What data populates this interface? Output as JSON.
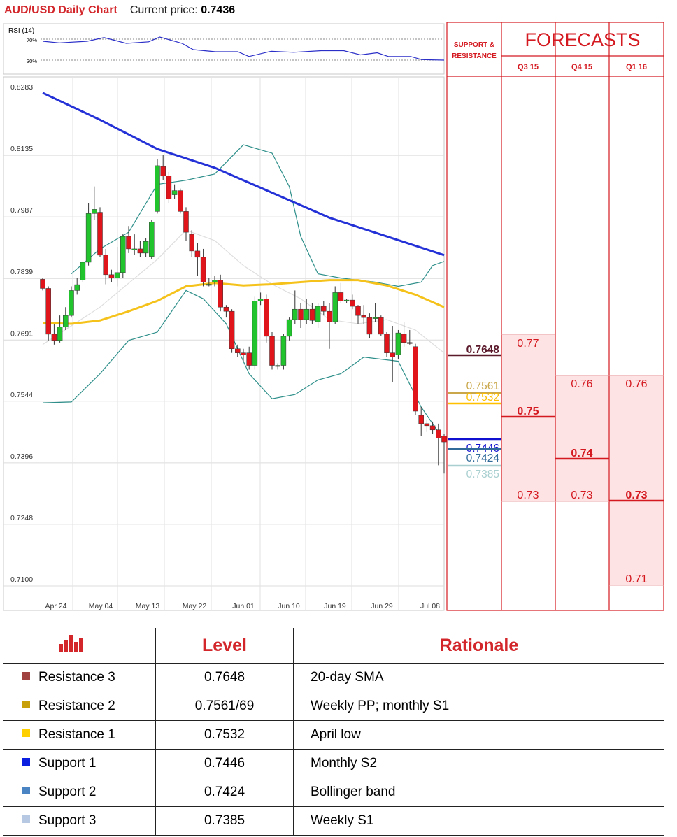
{
  "header": {
    "title": "AUD/USD Daily Chart",
    "price_label": "Current price:",
    "price_value": "0.7436"
  },
  "rsi": {
    "label": "RSI (14)",
    "level_high": "70%",
    "level_low": "30%"
  },
  "chart_data": {
    "type": "candlestick",
    "title": "AUD/USD Daily Chart",
    "ylim": [
      0.71,
      0.8283
    ],
    "y_ticks": [
      "0.8283",
      "0.8135",
      "0.7987",
      "0.7839",
      "0.7691",
      "0.7544",
      "0.7396",
      "0.7248",
      "0.7100"
    ],
    "x_tick_labels": [
      "Apr 24",
      "May 04",
      "May 13",
      "May 22",
      "Jun 01",
      "Jun 10",
      "Jun 19",
      "Jun 29",
      "Jul 08"
    ],
    "grid": true,
    "candles": [
      {
        "o": 0.7827,
        "h": 0.783,
        "l": 0.78,
        "c": 0.7805
      },
      {
        "o": 0.7805,
        "h": 0.781,
        "l": 0.768,
        "c": 0.7695
      },
      {
        "o": 0.7695,
        "h": 0.772,
        "l": 0.767,
        "c": 0.768
      },
      {
        "o": 0.768,
        "h": 0.774,
        "l": 0.7675,
        "c": 0.7712
      },
      {
        "o": 0.7712,
        "h": 0.776,
        "l": 0.7705,
        "c": 0.774
      },
      {
        "o": 0.774,
        "h": 0.781,
        "l": 0.7735,
        "c": 0.78
      },
      {
        "o": 0.78,
        "h": 0.783,
        "l": 0.779,
        "c": 0.7814
      },
      {
        "o": 0.7825,
        "h": 0.787,
        "l": 0.782,
        "c": 0.7868
      },
      {
        "o": 0.7868,
        "h": 0.801,
        "l": 0.786,
        "c": 0.7985
      },
      {
        "o": 0.7985,
        "h": 0.805,
        "l": 0.797,
        "c": 0.7995
      },
      {
        "o": 0.7988,
        "h": 0.8,
        "l": 0.788,
        "c": 0.7885
      },
      {
        "o": 0.7885,
        "h": 0.79,
        "l": 0.7815,
        "c": 0.7838
      },
      {
        "o": 0.7838,
        "h": 0.785,
        "l": 0.782,
        "c": 0.783
      },
      {
        "o": 0.783,
        "h": 0.7905,
        "l": 0.781,
        "c": 0.7843
      },
      {
        "o": 0.7843,
        "h": 0.7935,
        "l": 0.783,
        "c": 0.793
      },
      {
        "o": 0.793,
        "h": 0.7955,
        "l": 0.789,
        "c": 0.79
      },
      {
        "o": 0.79,
        "h": 0.7935,
        "l": 0.7885,
        "c": 0.79
      },
      {
        "o": 0.79,
        "h": 0.792,
        "l": 0.788,
        "c": 0.789
      },
      {
        "o": 0.789,
        "h": 0.7925,
        "l": 0.788,
        "c": 0.7918
      },
      {
        "o": 0.7882,
        "h": 0.797,
        "l": 0.7875,
        "c": 0.7965
      },
      {
        "o": 0.799,
        "h": 0.8115,
        "l": 0.7985,
        "c": 0.81
      },
      {
        "o": 0.8098,
        "h": 0.8125,
        "l": 0.8065,
        "c": 0.8075
      },
      {
        "o": 0.8075,
        "h": 0.8085,
        "l": 0.801,
        "c": 0.802
      },
      {
        "o": 0.803,
        "h": 0.8055,
        "l": 0.802,
        "c": 0.804
      },
      {
        "o": 0.804,
        "h": 0.8045,
        "l": 0.7985,
        "c": 0.799
      },
      {
        "o": 0.799,
        "h": 0.8,
        "l": 0.792,
        "c": 0.794
      },
      {
        "o": 0.7935,
        "h": 0.7945,
        "l": 0.788,
        "c": 0.7895
      },
      {
        "o": 0.7895,
        "h": 0.7915,
        "l": 0.7835,
        "c": 0.788
      },
      {
        "o": 0.788,
        "h": 0.79,
        "l": 0.781,
        "c": 0.782
      },
      {
        "o": 0.7815,
        "h": 0.783,
        "l": 0.781,
        "c": 0.7815
      },
      {
        "o": 0.782,
        "h": 0.7835,
        "l": 0.781,
        "c": 0.7825
      },
      {
        "o": 0.7825,
        "h": 0.7838,
        "l": 0.775,
        "c": 0.776
      },
      {
        "o": 0.776,
        "h": 0.7765,
        "l": 0.7735,
        "c": 0.775
      },
      {
        "o": 0.775,
        "h": 0.7755,
        "l": 0.765,
        "c": 0.766
      },
      {
        "o": 0.766,
        "h": 0.767,
        "l": 0.764,
        "c": 0.765
      },
      {
        "o": 0.765,
        "h": 0.766,
        "l": 0.763,
        "c": 0.7645
      },
      {
        "o": 0.765,
        "h": 0.7665,
        "l": 0.761,
        "c": 0.762
      },
      {
        "o": 0.762,
        "h": 0.7785,
        "l": 0.761,
        "c": 0.7775
      },
      {
        "o": 0.7775,
        "h": 0.7795,
        "l": 0.7765,
        "c": 0.778
      },
      {
        "o": 0.778,
        "h": 0.779,
        "l": 0.7675,
        "c": 0.769
      },
      {
        "o": 0.769,
        "h": 0.77,
        "l": 0.761,
        "c": 0.762
      },
      {
        "o": 0.762,
        "h": 0.7625,
        "l": 0.761,
        "c": 0.762
      },
      {
        "o": 0.762,
        "h": 0.7695,
        "l": 0.761,
        "c": 0.769
      },
      {
        "o": 0.769,
        "h": 0.7735,
        "l": 0.768,
        "c": 0.773
      },
      {
        "o": 0.773,
        "h": 0.78,
        "l": 0.772,
        "c": 0.7755
      },
      {
        "o": 0.7755,
        "h": 0.777,
        "l": 0.771,
        "c": 0.773
      },
      {
        "o": 0.773,
        "h": 0.778,
        "l": 0.772,
        "c": 0.7755
      },
      {
        "o": 0.7755,
        "h": 0.777,
        "l": 0.772,
        "c": 0.7728
      },
      {
        "o": 0.7725,
        "h": 0.777,
        "l": 0.771,
        "c": 0.7762
      },
      {
        "o": 0.7762,
        "h": 0.7775,
        "l": 0.774,
        "c": 0.775
      },
      {
        "o": 0.775,
        "h": 0.777,
        "l": 0.766,
        "c": 0.7725
      },
      {
        "o": 0.7725,
        "h": 0.781,
        "l": 0.772,
        "c": 0.7795
      },
      {
        "o": 0.7795,
        "h": 0.7818,
        "l": 0.777,
        "c": 0.7775
      },
      {
        "o": 0.7775,
        "h": 0.778,
        "l": 0.777,
        "c": 0.7777
      },
      {
        "o": 0.7777,
        "h": 0.779,
        "l": 0.7755,
        "c": 0.7762
      },
      {
        "o": 0.7762,
        "h": 0.7765,
        "l": 0.772,
        "c": 0.774
      },
      {
        "o": 0.774,
        "h": 0.7765,
        "l": 0.772,
        "c": 0.7735
      },
      {
        "o": 0.7735,
        "h": 0.7745,
        "l": 0.7685,
        "c": 0.7695
      },
      {
        "o": 0.7735,
        "h": 0.777,
        "l": 0.7725,
        "c": 0.7735
      },
      {
        "o": 0.7735,
        "h": 0.774,
        "l": 0.769,
        "c": 0.7695
      },
      {
        "o": 0.7695,
        "h": 0.77,
        "l": 0.764,
        "c": 0.765
      },
      {
        "o": 0.765,
        "h": 0.7715,
        "l": 0.758,
        "c": 0.764
      },
      {
        "o": 0.7645,
        "h": 0.7705,
        "l": 0.7635,
        "c": 0.7698
      },
      {
        "o": 0.7695,
        "h": 0.7725,
        "l": 0.7665,
        "c": 0.7675
      },
      {
        "o": 0.7675,
        "h": 0.7705,
        "l": 0.767,
        "c": 0.7673
      },
      {
        "o": 0.7665,
        "h": 0.7672,
        "l": 0.75,
        "c": 0.751
      },
      {
        "o": 0.75,
        "h": 0.752,
        "l": 0.745,
        "c": 0.748
      },
      {
        "o": 0.748,
        "h": 0.749,
        "l": 0.746,
        "c": 0.7475
      },
      {
        "o": 0.7475,
        "h": 0.7485,
        "l": 0.7455,
        "c": 0.7465
      },
      {
        "o": 0.7465,
        "h": 0.748,
        "l": 0.738,
        "c": 0.7445
      },
      {
        "o": 0.745,
        "h": 0.7455,
        "l": 0.736,
        "c": 0.7436
      }
    ],
    "sma200": [
      [
        0,
        0.8275
      ],
      [
        10,
        0.821
      ],
      [
        20,
        0.814
      ],
      [
        30,
        0.8095
      ],
      [
        40,
        0.8035
      ],
      [
        50,
        0.7975
      ],
      [
        60,
        0.793
      ],
      [
        70,
        0.7885
      ]
    ],
    "sma50": [
      [
        0,
        0.7722
      ],
      [
        5,
        0.772
      ],
      [
        10,
        0.7728
      ],
      [
        15,
        0.775
      ],
      [
        20,
        0.7775
      ],
      [
        25,
        0.781
      ],
      [
        30,
        0.7818
      ],
      [
        35,
        0.7812
      ],
      [
        40,
        0.7815
      ],
      [
        45,
        0.782
      ],
      [
        50,
        0.7825
      ],
      [
        55,
        0.7825
      ],
      [
        60,
        0.7812
      ],
      [
        65,
        0.779
      ],
      [
        70,
        0.776
      ]
    ],
    "bb_upper": [
      [
        5,
        0.784
      ],
      [
        10,
        0.79
      ],
      [
        15,
        0.794
      ],
      [
        20,
        0.8055
      ],
      [
        25,
        0.8065
      ],
      [
        30,
        0.808
      ],
      [
        35,
        0.815
      ],
      [
        40,
        0.813
      ],
      [
        43,
        0.805
      ],
      [
        45,
        0.793
      ],
      [
        48,
        0.784
      ],
      [
        52,
        0.783
      ],
      [
        58,
        0.782
      ],
      [
        62,
        0.781
      ],
      [
        66,
        0.782
      ],
      [
        68,
        0.786
      ],
      [
        70,
        0.787
      ]
    ],
    "bb_lower": [
      [
        0,
        0.753
      ],
      [
        5,
        0.7532
      ],
      [
        10,
        0.76
      ],
      [
        15,
        0.768
      ],
      [
        20,
        0.77
      ],
      [
        25,
        0.78
      ],
      [
        28,
        0.778
      ],
      [
        32,
        0.772
      ],
      [
        36,
        0.76
      ],
      [
        40,
        0.754
      ],
      [
        44,
        0.755
      ],
      [
        48,
        0.7585
      ],
      [
        52,
        0.76
      ],
      [
        56,
        0.764
      ],
      [
        62,
        0.763
      ],
      [
        66,
        0.752
      ],
      [
        70,
        0.744
      ]
    ],
    "bb_middle": [
      [
        0,
        0.767
      ],
      [
        10,
        0.776
      ],
      [
        20,
        0.7875
      ],
      [
        25,
        0.7945
      ],
      [
        30,
        0.792
      ],
      [
        35,
        0.786
      ],
      [
        40,
        0.7815
      ],
      [
        45,
        0.778
      ],
      [
        50,
        0.773
      ],
      [
        55,
        0.772
      ],
      [
        60,
        0.773
      ],
      [
        65,
        0.7705
      ],
      [
        70,
        0.765
      ]
    ],
    "rsi_values": [
      [
        0,
        66
      ],
      [
        3,
        63
      ],
      [
        8,
        66
      ],
      [
        11,
        73
      ],
      [
        15,
        62
      ],
      [
        19,
        65
      ],
      [
        21,
        74
      ],
      [
        25,
        62
      ],
      [
        27,
        50
      ],
      [
        31,
        46
      ],
      [
        35,
        46
      ],
      [
        37,
        37
      ],
      [
        41,
        47
      ],
      [
        45,
        45
      ],
      [
        50,
        48
      ],
      [
        54,
        48
      ],
      [
        57,
        40
      ],
      [
        60,
        44
      ],
      [
        62,
        37
      ],
      [
        66,
        37
      ],
      [
        68,
        31
      ],
      [
        72,
        30
      ]
    ],
    "support_resistance": [
      {
        "value": "0.7648",
        "color": "#5b1a2c"
      },
      {
        "value": "0.7561",
        "color": "#c9a74a"
      },
      {
        "value": "0.7532",
        "color": "#ffc000"
      },
      {
        "value": "0.7446",
        "color": "#1010d0"
      },
      {
        "value": "0.7424",
        "color": "#2f6a9a"
      },
      {
        "value": "0.7385",
        "color": "#a9cfd0"
      }
    ],
    "forecasts": {
      "title": "FORECASTS",
      "sr_header": [
        "SUPPORT &",
        "RESISTANCE"
      ],
      "quarters": [
        {
          "label": "Q3 15",
          "top": "0.77",
          "mid": "0.75",
          "low": "0.73"
        },
        {
          "label": "Q4 15",
          "top": "0.76",
          "mid": "0.74",
          "low": "0.73"
        },
        {
          "label": "Q1 16",
          "top": "0.76",
          "mid": "0.73",
          "low": "0.71"
        }
      ]
    }
  },
  "levels_table": {
    "headers": {
      "level": "Level",
      "rationale": "Rationale"
    },
    "rows": [
      {
        "name": "Resistance 3",
        "level": "0.7648",
        "rationale": "20-day SMA",
        "color": "#a0413f"
      },
      {
        "name": "Resistance 2",
        "level": "0.7561/69",
        "rationale": "Weekly PP; monthly S1",
        "color": "#c8a00a"
      },
      {
        "name": "Resistance 1",
        "level": "0.7532",
        "rationale": "April low",
        "color": "#ffd000"
      },
      {
        "name": "Support 1",
        "level": "0.7446",
        "rationale": "Monthly S2",
        "color": "#0a1fe0"
      },
      {
        "name": "Support 2",
        "level": "0.7424",
        "rationale": "Bollinger band",
        "color": "#4a84c2"
      },
      {
        "name": "Support 3",
        "level": "0.7385",
        "rationale": "Weekly S1",
        "color": "#b7c9e2"
      }
    ]
  }
}
